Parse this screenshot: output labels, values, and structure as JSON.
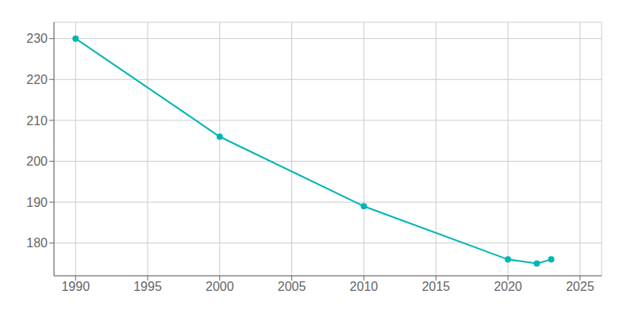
{
  "chart_data": {
    "type": "line",
    "x": [
      1990,
      2000,
      2010,
      2020,
      2022,
      2023
    ],
    "values": [
      230,
      206,
      189,
      176,
      175,
      176
    ],
    "color": "#00B5B5",
    "marker": "circle",
    "xlim": [
      1988.5,
      2026.5
    ],
    "ylim": [
      172,
      234
    ],
    "xticks": [
      1990,
      1995,
      2000,
      2005,
      2010,
      2015,
      2020,
      2025
    ],
    "yticks": [
      180,
      190,
      200,
      210,
      220,
      230
    ],
    "grid": true
  }
}
